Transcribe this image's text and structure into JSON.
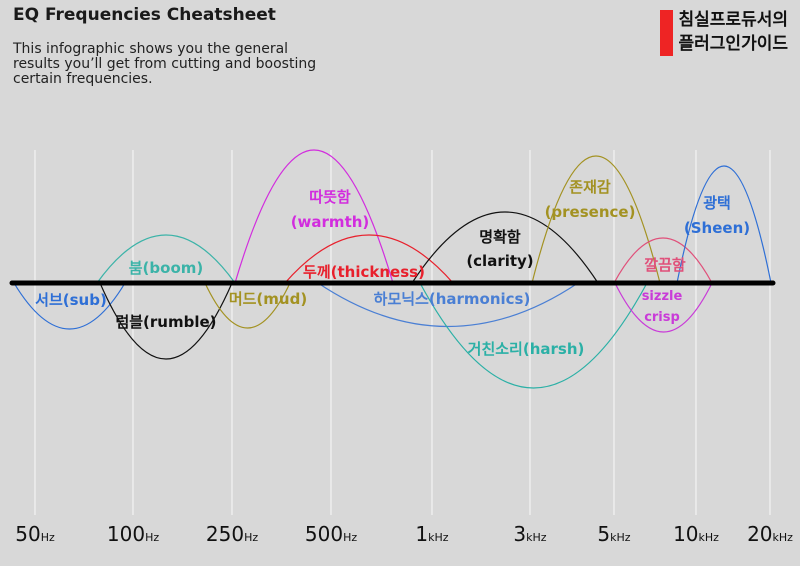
{
  "header": {
    "title": "EQ Frequencies Cheatsheet",
    "description": "This infographic shows you the general results you’ll get from cutting and boosting certain frequencies."
  },
  "brand": {
    "line1": "침실프로듀서의",
    "line2": "플러그인가이드",
    "accent_color": "#ee2424"
  },
  "axis": {
    "ticks": [
      {
        "num": "50",
        "unit": "Hz"
      },
      {
        "num": "100",
        "unit": "Hz"
      },
      {
        "num": "250",
        "unit": "Hz"
      },
      {
        "num": "500",
        "unit": "Hz"
      },
      {
        "num": "1",
        "unit": "kHz"
      },
      {
        "num": "3",
        "unit": "kHz"
      },
      {
        "num": "5",
        "unit": "kHz"
      },
      {
        "num": "10",
        "unit": "kHz"
      },
      {
        "num": "20",
        "unit": "kHz"
      }
    ]
  },
  "bands": [
    {
      "id": "sub",
      "lines": [
        "서브(sub)"
      ],
      "color": "#2e6fd6"
    },
    {
      "id": "boom",
      "lines": [
        "붐(boom)"
      ],
      "color": "#3bb3a8"
    },
    {
      "id": "rumble",
      "lines": [
        "럼블(rumble)"
      ],
      "color": "#111111"
    },
    {
      "id": "mud",
      "lines": [
        "머드(mud)"
      ],
      "color": "#a39222"
    },
    {
      "id": "warmth",
      "lines": [
        "따뜻함",
        "(warmth)"
      ],
      "color": "#d22cde"
    },
    {
      "id": "thickness",
      "lines": [
        "두께(thickness)"
      ],
      "color": "#e8202c"
    },
    {
      "id": "harmonics",
      "lines": [
        "하모닉스(harmonics)"
      ],
      "color": "#4a7fd4"
    },
    {
      "id": "clarity",
      "lines": [
        "명확함",
        "(clarity)"
      ],
      "color": "#111111"
    },
    {
      "id": "harsh",
      "lines": [
        "거친소리(harsh)"
      ],
      "color": "#2bb0a6"
    },
    {
      "id": "presence",
      "lines": [
        "존재감",
        "(presence)"
      ],
      "color": "#a39222"
    },
    {
      "id": "sizzle",
      "lines": [
        "깔끔함"
      ],
      "color": "#e0507a"
    },
    {
      "id": "crisp",
      "lines": [
        "sizzle",
        "crisp"
      ],
      "color": "#c93bd8"
    },
    {
      "id": "sheen",
      "lines": [
        "광택",
        "(Sheen)"
      ],
      "color": "#2e6fd6"
    }
  ]
}
